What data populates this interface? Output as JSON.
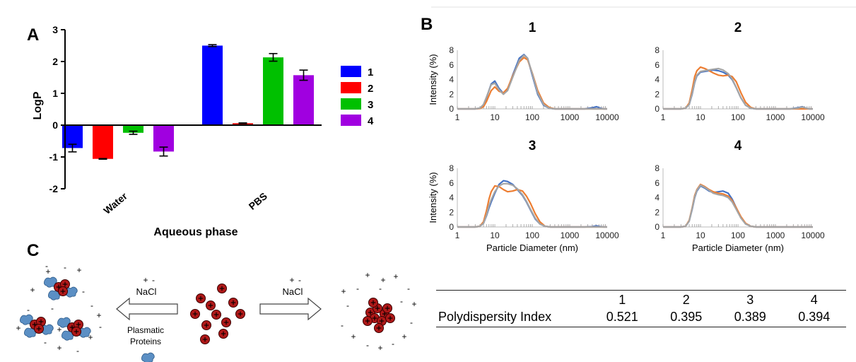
{
  "panels": {
    "a": "A",
    "b": "B",
    "c": "C"
  },
  "chart_data": [
    {
      "type": "bar",
      "xlabel": "Aqueous phase",
      "ylabel": "LogP",
      "categories": [
        "Water",
        "PBS"
      ],
      "ylim": [
        -2,
        3
      ],
      "yticks": [
        "-2",
        "-1",
        "0",
        "1",
        "2",
        "3"
      ],
      "legend_position": "right",
      "series": [
        {
          "name": "1",
          "color": "#0000ff",
          "values": [
            -0.72,
            2.5
          ],
          "errors": [
            0.12,
            0.03
          ]
        },
        {
          "name": "2",
          "color": "#ff0000",
          "values": [
            -1.06,
            0.06
          ],
          "errors": [
            0.01,
            0.01
          ]
        },
        {
          "name": "3",
          "color": "#00c000",
          "values": [
            -0.24,
            2.13
          ],
          "errors": [
            0.05,
            0.12
          ]
        },
        {
          "name": "4",
          "color": "#a000e0",
          "values": [
            -0.83,
            1.57
          ],
          "errors": [
            0.14,
            0.16
          ]
        }
      ]
    },
    {
      "type": "line",
      "xscale": "log",
      "xlim": [
        1,
        10000
      ],
      "ylim": [
        0,
        8
      ],
      "xticks": [
        "1",
        "10",
        "100",
        "1000",
        "10000"
      ],
      "yticks": [
        "0",
        "2",
        "4",
        "6",
        "8"
      ],
      "ylabel": "Intensity (%)",
      "xlabel": "Particle Diameter (nm)",
      "series_colors": [
        "#4472c4",
        "#ed7d31",
        "#a5a5a5"
      ],
      "subplots": [
        {
          "title": "1",
          "series": [
            {
              "x": [
                3,
                4,
                5,
                6,
                8,
                10,
                13,
                17,
                22,
                30,
                45,
                60,
                75,
                100,
                140,
                200,
                280,
                400,
                2500,
                4000,
                5200,
                6500,
                8000
              ],
              "y": [
                0,
                0.1,
                0.5,
                1.5,
                3.4,
                3.8,
                2.8,
                2.1,
                2.6,
                4.6,
                6.9,
                7.4,
                6.9,
                4.6,
                2.0,
                0.5,
                0.1,
                0,
                0,
                0.15,
                0.3,
                0.1,
                0
              ]
            },
            {
              "x": [
                3,
                4,
                5,
                6,
                8,
                10,
                13,
                17,
                22,
                30,
                45,
                60,
                75,
                100,
                140,
                200,
                280,
                400
              ],
              "y": [
                0,
                0.05,
                0.3,
                1.0,
                2.5,
                3.0,
                2.4,
                2.2,
                2.8,
                4.5,
                6.4,
                7.0,
                6.7,
                4.9,
                2.5,
                0.8,
                0.2,
                0
              ]
            },
            {
              "x": [
                3,
                4,
                5,
                6,
                8,
                10,
                13,
                17,
                22,
                30,
                45,
                60,
                75,
                100,
                140,
                200,
                280,
                400
              ],
              "y": [
                0,
                0.1,
                0.6,
                1.6,
                3.3,
                3.5,
                2.6,
                2.0,
                2.5,
                4.3,
                6.6,
                7.3,
                6.9,
                4.8,
                2.2,
                0.6,
                0.1,
                0
              ]
            }
          ]
        },
        {
          "title": "2",
          "series": [
            {
              "x": [
                3,
                4,
                5,
                6,
                7,
                8,
                10,
                13,
                17,
                22,
                30,
                40,
                55,
                70,
                90,
                120,
                160,
                220,
                300,
                2500,
                4000,
                5200,
                6500,
                8000
              ],
              "y": [
                0,
                0.1,
                0.6,
                2.0,
                3.6,
                4.5,
                5.0,
                5.1,
                5.2,
                5.3,
                5.2,
                5.0,
                4.6,
                4.0,
                2.9,
                1.5,
                0.5,
                0.1,
                0,
                0,
                0.15,
                0.3,
                0.1,
                0
              ]
            },
            {
              "x": [
                3,
                4,
                5,
                6,
                7,
                8,
                10,
                13,
                17,
                22,
                30,
                40,
                55,
                70,
                90,
                120,
                160,
                220,
                300
              ],
              "y": [
                0,
                0.1,
                0.8,
                2.6,
                4.4,
                5.2,
                5.7,
                5.5,
                5.2,
                4.9,
                4.6,
                4.5,
                4.6,
                4.4,
                3.7,
                2.2,
                0.9,
                0.2,
                0
              ]
            },
            {
              "x": [
                3,
                4,
                5,
                6,
                7,
                8,
                10,
                13,
                17,
                22,
                30,
                40,
                55,
                70,
                90,
                120,
                160,
                220,
                300,
                2500,
                4000,
                5200,
                6500,
                8000
              ],
              "y": [
                0,
                0.1,
                0.6,
                2.1,
                3.7,
                4.6,
                5.1,
                5.2,
                5.3,
                5.4,
                5.5,
                5.3,
                4.8,
                4.1,
                2.9,
                1.5,
                0.5,
                0.1,
                0,
                0,
                0.1,
                0.25,
                0.1,
                0
              ]
            }
          ]
        },
        {
          "title": "3",
          "series": [
            {
              "x": [
                3,
                4,
                5,
                6,
                7,
                8,
                10,
                13,
                17,
                22,
                30,
                40,
                55,
                70,
                90,
                120,
                160,
                220,
                300,
                2500,
                4000,
                5200,
                6500,
                8000
              ],
              "y": [
                0,
                0.1,
                0.5,
                1.5,
                2.6,
                3.4,
                4.6,
                5.8,
                6.3,
                6.2,
                5.8,
                5.1,
                4.3,
                3.4,
                2.3,
                1.1,
                0.4,
                0.1,
                0,
                0,
                0.05,
                0.15,
                0.05,
                0
              ]
            },
            {
              "x": [
                3,
                4,
                5,
                6,
                7,
                8,
                10,
                13,
                17,
                22,
                30,
                40,
                55,
                70,
                90,
                120,
                160,
                220,
                300
              ],
              "y": [
                0,
                0.1,
                0.7,
                2.2,
                3.8,
                4.8,
                5.6,
                5.5,
                5.1,
                4.8,
                4.9,
                5.1,
                4.9,
                4.2,
                3.2,
                1.8,
                0.7,
                0.1,
                0
              ]
            },
            {
              "x": [
                3,
                4,
                5,
                6,
                7,
                8,
                10,
                13,
                17,
                22,
                30,
                40,
                55,
                70,
                90,
                120,
                160,
                220,
                300
              ],
              "y": [
                0,
                0.1,
                0.5,
                1.6,
                2.9,
                3.7,
                4.8,
                5.6,
                5.9,
                5.9,
                5.7,
                5.2,
                4.4,
                3.5,
                2.4,
                1.2,
                0.4,
                0.1,
                0
              ]
            }
          ]
        },
        {
          "title": "4",
          "series": [
            {
              "x": [
                3,
                4,
                5,
                6,
                7,
                8,
                10,
                13,
                17,
                22,
                30,
                40,
                55,
                70,
                90,
                120,
                160,
                220,
                300
              ],
              "y": [
                0,
                0.1,
                0.8,
                2.4,
                4.0,
                4.9,
                5.6,
                5.3,
                4.9,
                4.7,
                4.8,
                4.9,
                4.6,
                3.8,
                2.6,
                1.3,
                0.4,
                0.1,
                0
              ]
            },
            {
              "x": [
                3,
                4,
                5,
                6,
                7,
                8,
                10,
                13,
                17,
                22,
                30,
                40,
                55,
                70,
                90,
                120,
                160,
                220,
                300
              ],
              "y": [
                0,
                0.1,
                0.9,
                2.6,
                4.3,
                5.1,
                5.8,
                5.5,
                5.1,
                4.8,
                4.6,
                4.5,
                4.2,
                3.6,
                2.6,
                1.4,
                0.5,
                0.1,
                0
              ]
            },
            {
              "x": [
                3,
                4,
                5,
                6,
                7,
                8,
                10,
                13,
                17,
                22,
                30,
                40,
                55,
                70,
                90,
                120,
                160,
                220,
                300
              ],
              "y": [
                0,
                0.1,
                0.8,
                2.5,
                4.1,
                5.0,
                5.7,
                5.4,
                5.0,
                4.6,
                4.4,
                4.3,
                4.0,
                3.4,
                2.4,
                1.2,
                0.4,
                0.1,
                0
              ]
            }
          ]
        }
      ]
    },
    {
      "type": "table",
      "columns": [
        "1",
        "2",
        "3",
        "4"
      ],
      "row_label": "Polydispersity Index",
      "values": [
        "0.521",
        "0.395",
        "0.389",
        "0.394"
      ]
    }
  ],
  "schematic": {
    "salt_left": "NaCl",
    "salt_right": "NaCl",
    "proteins": "Plasmatic Proteins",
    "plus": "+",
    "minus": "-"
  }
}
